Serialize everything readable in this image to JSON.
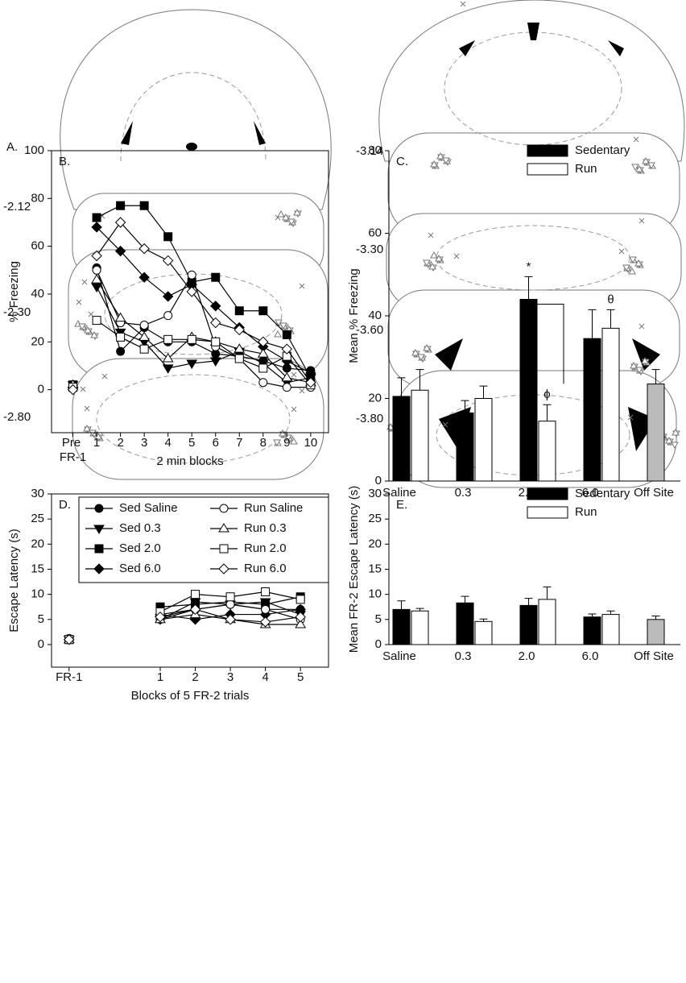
{
  "atlas": {
    "label": "A.",
    "sections": [
      "-2.12",
      "-2.30",
      "-2.80",
      "-3.14",
      "-3.30",
      "-3.60",
      "-3.80"
    ]
  },
  "chart_data": [
    {
      "type": "line",
      "label": "B.",
      "ylabel": "% Freezing",
      "xlabel": "2 min blocks",
      "x": [
        1,
        2,
        3,
        4,
        5,
        6,
        7,
        8,
        9,
        10
      ],
      "xlim": [
        -0.9,
        10.75
      ],
      "xticks": [
        {
          "value": 0,
          "label": "Pre FR-1"
        },
        1,
        2,
        3,
        4,
        5,
        6,
        7,
        8,
        9,
        10
      ],
      "ylim": [
        -18,
        100
      ],
      "yticks": [
        0,
        20,
        40,
        60,
        80,
        100
      ],
      "series": [
        {
          "shape": "circle",
          "color": "#000",
          "fill": "#000",
          "pre": 2,
          "values": [
            51,
            16,
            26,
            20,
            20,
            15,
            14,
            12,
            9,
            8
          ]
        },
        {
          "shape": "tri-down",
          "color": "#000",
          "fill": "#000",
          "pre": 2,
          "values": [
            43,
            24,
            20,
            9,
            11,
            12,
            16,
            11,
            3,
            5
          ]
        },
        {
          "shape": "square",
          "color": "#000",
          "fill": "#000",
          "pre": 2,
          "values": [
            72,
            77,
            77,
            64,
            45,
            47,
            33,
            33,
            23,
            5
          ]
        },
        {
          "shape": "diamond",
          "color": "#000",
          "fill": "#000",
          "pre": 1,
          "values": [
            68,
            58,
            47,
            39,
            44,
            35,
            26,
            18,
            12,
            7
          ]
        },
        {
          "shape": "circle",
          "color": "#000",
          "fill": "#fff",
          "pre": 1,
          "values": [
            50,
            28,
            27,
            31,
            48,
            18,
            13,
            3,
            1,
            1
          ]
        },
        {
          "shape": "tri-up",
          "color": "#000",
          "fill": "#fff",
          "pre": 2,
          "values": [
            46,
            30,
            22,
            13,
            22,
            20,
            17,
            15,
            5,
            3
          ]
        },
        {
          "shape": "square",
          "color": "#000",
          "fill": "#fff",
          "pre": 1,
          "values": [
            29,
            22,
            17,
            21,
            21,
            20,
            13,
            9,
            14,
            2
          ]
        },
        {
          "shape": "diamond",
          "color": "#000",
          "fill": "#fff",
          "pre": 0,
          "values": [
            56,
            70,
            59,
            54,
            41,
            28,
            25,
            20,
            17,
            3
          ]
        }
      ]
    },
    {
      "type": "bar",
      "label": "C.",
      "ylabel": "Mean % Freezing",
      "categories": [
        "Saline",
        "0.3",
        "2.0",
        "6.0",
        "Off Site"
      ],
      "ylim": [
        0,
        80
      ],
      "yticks": [
        0,
        20,
        40,
        60,
        80
      ],
      "legend": "upper-right",
      "series": [
        {
          "name": "Sedentary",
          "color": "#000",
          "values": [
            20.5,
            16.5,
            44,
            34.5,
            null
          ],
          "errors": [
            4.5,
            3,
            5.5,
            7,
            null
          ]
        },
        {
          "name": "Run",
          "color": "#fff",
          "values": [
            22,
            20,
            14.5,
            37,
            null
          ],
          "errors": [
            5,
            3,
            4,
            4.5,
            null
          ]
        },
        {
          "color": "#bbb",
          "values": [
            null,
            null,
            null,
            null,
            23.5
          ],
          "errors": [
            null,
            null,
            null,
            null,
            3.5
          ]
        }
      ],
      "annotations": [
        {
          "text": "*",
          "category": 2,
          "series": 0
        },
        {
          "text": "ϕ",
          "category": 2,
          "series": 1
        },
        {
          "text": "θ",
          "category": 3,
          "series": 1
        }
      ]
    },
    {
      "type": "line",
      "label": "D.",
      "ylabel": "Escape Latency (s)",
      "xlabel": "Blocks of 5 FR-2 trials",
      "x": [
        1,
        2,
        3,
        4,
        5
      ],
      "xlim": [
        -2.1,
        5.8
      ],
      "xticks": [
        {
          "value": -1.6,
          "label": "FR-1"
        },
        1,
        2,
        3,
        4,
        5
      ],
      "ylim": [
        -4.5,
        30
      ],
      "yticks": [
        0,
        5,
        10,
        15,
        20,
        25,
        30
      ],
      "legend": "upper-left",
      "series": [
        {
          "name": "Sed Saline",
          "shape": "circle",
          "color": "#000",
          "fill": "#000",
          "pre": 1.2,
          "values": [
            5,
            7,
            8,
            7,
            7
          ]
        },
        {
          "name": "Sed 0.3",
          "shape": "tri-down",
          "color": "#000",
          "fill": "#000",
          "pre": 1,
          "values": [
            5,
            8.5,
            8,
            8.5,
            6
          ]
        },
        {
          "name": "Sed 2.0",
          "shape": "square",
          "color": "#000",
          "fill": "#000",
          "pre": 1,
          "values": [
            7.5,
            8,
            8.5,
            8,
            9.5
          ]
        },
        {
          "name": "Sed 6.0",
          "shape": "diamond",
          "color": "#000",
          "fill": "#000",
          "pre": 1,
          "values": [
            6,
            5,
            6,
            6,
            7
          ]
        },
        {
          "name": "Run Saline",
          "shape": "circle",
          "color": "#000",
          "fill": "#fff",
          "pre": 1,
          "values": [
            6,
            7,
            8,
            7,
            5
          ]
        },
        {
          "name": "Run 0.3",
          "shape": "tri-up",
          "color": "#000",
          "fill": "#fff",
          "pre": 1,
          "values": [
            5,
            6,
            5,
            4,
            4
          ]
        },
        {
          "name": "Run 2.0",
          "shape": "square",
          "color": "#000",
          "fill": "#fff",
          "pre": 1,
          "values": [
            6.5,
            10,
            9.5,
            10.5,
            9
          ]
        },
        {
          "name": "Run 6.0",
          "shape": "diamond",
          "color": "#000",
          "fill": "#fff",
          "pre": 1,
          "values": [
            5.5,
            7,
            5,
            4.5,
            5.5
          ]
        }
      ]
    },
    {
      "type": "bar",
      "label": "E.",
      "ylabel": "Mean FR-2 Escape Latency (s)",
      "categories": [
        "Saline",
        "0.3",
        "2.0",
        "6.0",
        "Off Site"
      ],
      "ylim": [
        0,
        30
      ],
      "yticks": [
        0,
        5,
        10,
        15,
        20,
        25,
        30
      ],
      "legend": "upper-right",
      "series": [
        {
          "name": "Sedentary",
          "color": "#000",
          "values": [
            7,
            8.3,
            7.8,
            5.5,
            null
          ],
          "errors": [
            1.7,
            1.3,
            1.4,
            0.6,
            null
          ]
        },
        {
          "name": "Run",
          "color": "#fff",
          "values": [
            6.7,
            4.6,
            9,
            6,
            null
          ],
          "errors": [
            0.5,
            0.5,
            2.5,
            0.7,
            null
          ]
        },
        {
          "color": "#bbb",
          "values": [
            null,
            null,
            null,
            null,
            5
          ],
          "errors": [
            null,
            null,
            null,
            null,
            0.7
          ]
        }
      ]
    }
  ]
}
